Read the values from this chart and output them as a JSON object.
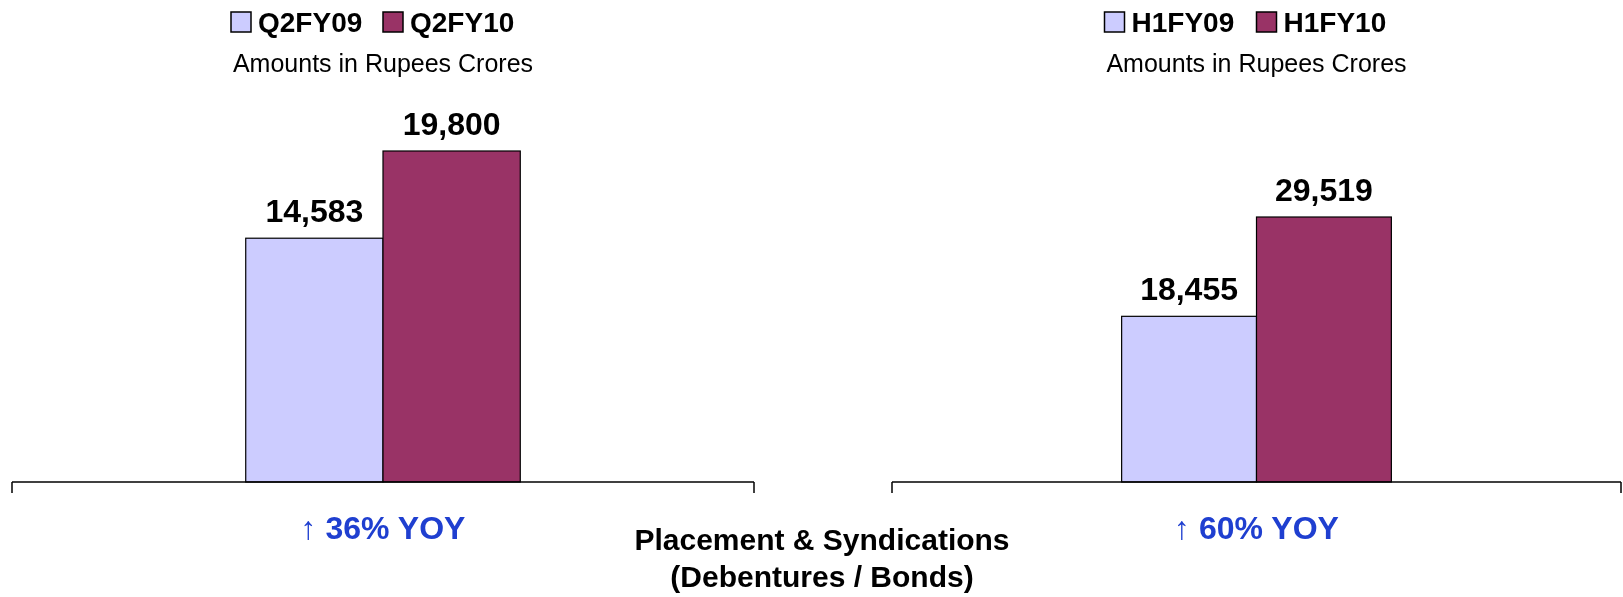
{
  "chart_data": [
    {
      "type": "bar",
      "subtitle": "Amounts in Rupees Crores",
      "categories": [
        null
      ],
      "legend": "top",
      "series": [
        {
          "name": "Q2FY09",
          "color": "#ccccff",
          "values": [
            14583
          ],
          "value_labels": [
            "14,583"
          ]
        },
        {
          "name": "Q2FY10",
          "color": "#993366",
          "values": [
            19800
          ],
          "value_labels": [
            "19,800"
          ]
        }
      ],
      "annotations": [
        "↑ 36% YOY",
        "Placement & Syndications\n(Debentures / Bonds)"
      ]
    },
    {
      "type": "bar",
      "subtitle": "Amounts in Rupees Crores",
      "categories": [
        null
      ],
      "legend": "top",
      "series": [
        {
          "name": "H1FY09",
          "color": "#ccccff",
          "values": [
            18455
          ],
          "value_labels": [
            "18,455"
          ]
        },
        {
          "name": "H1FY10",
          "color": "#993366",
          "values": [
            29519
          ],
          "value_labels": [
            "29,519"
          ]
        }
      ],
      "annotations": [
        "↑ 60% YOY"
      ]
    }
  ]
}
